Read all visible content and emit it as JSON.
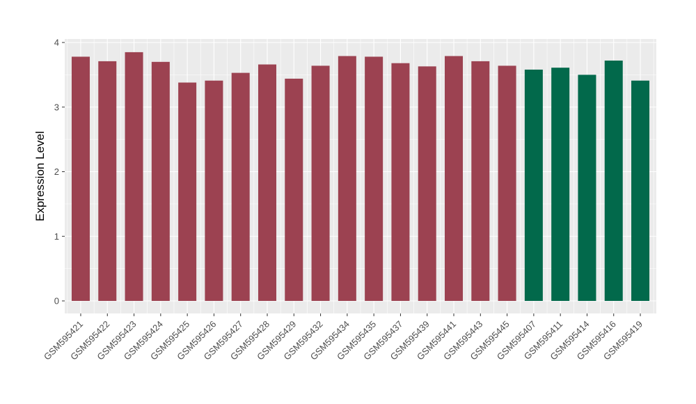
{
  "chart_data": {
    "type": "bar",
    "title": "",
    "ylabel": "Expression Level",
    "xlabel": "",
    "categories": [
      "GSM595421",
      "GSM595422",
      "GSM595423",
      "GSM595424",
      "GSM595425",
      "GSM595426",
      "GSM595427",
      "GSM595428",
      "GSM595429",
      "GSM595432",
      "GSM595434",
      "GSM595435",
      "GSM595437",
      "GSM595439",
      "GSM595441",
      "GSM595443",
      "GSM595445",
      "GSM595407",
      "GSM595411",
      "GSM595414",
      "GSM595416",
      "GSM595419"
    ],
    "values": [
      3.78,
      3.71,
      3.85,
      3.7,
      3.38,
      3.41,
      3.53,
      3.66,
      3.44,
      3.64,
      3.79,
      3.78,
      3.68,
      3.63,
      3.79,
      3.71,
      3.64,
      3.58,
      3.61,
      3.5,
      3.72,
      3.41
    ],
    "bar_color_groups": [
      "red",
      "red",
      "red",
      "red",
      "red",
      "red",
      "red",
      "red",
      "red",
      "red",
      "red",
      "red",
      "red",
      "red",
      "red",
      "red",
      "red",
      "green",
      "green",
      "green",
      "green",
      "green"
    ],
    "group_colors": {
      "red": "#9C4251",
      "green": "#02694B"
    },
    "yticks": [
      0,
      1,
      2,
      3,
      4
    ],
    "ylim": [
      0,
      4
    ],
    "x_tick_rotation": -45,
    "grid": true,
    "legend": false,
    "panel_background": "#EBEBEB",
    "gridline_color": "#FFFFFF",
    "axis_text_color": "#4D4D4D",
    "axis_title_color": "#000000",
    "tick_mark_color": "#333333"
  }
}
